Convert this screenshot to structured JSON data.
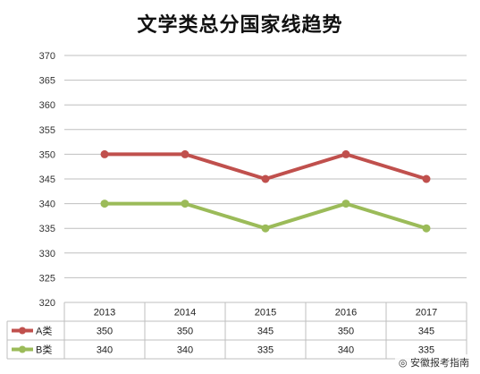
{
  "chart_data": {
    "type": "line",
    "title": "文学类总分国家线趋势",
    "categories": [
      "2013",
      "2014",
      "2015",
      "2016",
      "2017"
    ],
    "series": [
      {
        "name": "A类",
        "values": [
          350,
          350,
          345,
          350,
          345
        ],
        "color": "#c0504d"
      },
      {
        "name": "B类",
        "values": [
          340,
          340,
          335,
          340,
          335
        ],
        "color": "#9bbb59"
      }
    ],
    "ylim": [
      320,
      370
    ],
    "yticks": [
      320,
      325,
      330,
      335,
      340,
      345,
      350,
      355,
      360,
      365,
      370
    ],
    "grid": true,
    "legend": "data-table"
  },
  "watermark": "安徽报考指南"
}
